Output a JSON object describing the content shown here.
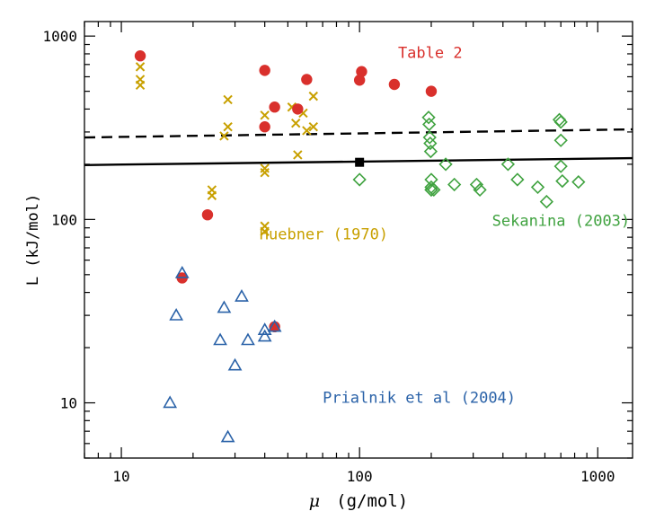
{
  "chart_data": {
    "type": "scatter",
    "xscale": "log",
    "yscale": "log",
    "xlim": [
      7,
      1400
    ],
    "ylim": [
      5,
      1200
    ],
    "xlabel_symbol": "μ",
    "xlabel_units": "(g/mol)",
    "ylabel": "L  (kJ/mol)",
    "xticks": [
      {
        "value": 10,
        "label": "10"
      },
      {
        "value": 100,
        "label": "100"
      },
      {
        "value": 1000,
        "label": "1000"
      }
    ],
    "yticks": [
      {
        "value": 10,
        "label": "10"
      },
      {
        "value": 100,
        "label": "100"
      },
      {
        "value": 1000,
        "label": "1000"
      }
    ],
    "grid": false,
    "series": [
      {
        "name": "Huebner (1970)",
        "marker": "x",
        "color": "#c8a000",
        "x": [
          12,
          12,
          12,
          24,
          24,
          27,
          28,
          28,
          40,
          40,
          40,
          40,
          40,
          52,
          54,
          55,
          58,
          60,
          64,
          64
        ],
        "y": [
          680,
          580,
          540,
          145,
          135,
          285,
          450,
          320,
          370,
          190,
          180,
          92,
          86,
          410,
          335,
          225,
          380,
          305,
          470,
          320
        ]
      },
      {
        "name": "Table 2",
        "marker": "filled-circle",
        "color": "#d9302c",
        "x": [
          12,
          18,
          23,
          40,
          40,
          44,
          44,
          55,
          60,
          100,
          102,
          140,
          200
        ],
        "y": [
          780,
          48,
          106,
          650,
          320,
          410,
          26,
          400,
          580,
          575,
          640,
          545,
          500
        ]
      },
      {
        "name": "Sekanina (2003)",
        "marker": "diamond",
        "color": "#3fa23f",
        "x": [
          100,
          195,
          196,
          197,
          198,
          199,
          200,
          200,
          200,
          200,
          205,
          230,
          250,
          310,
          320,
          420,
          460,
          560,
          610,
          690,
          700,
          700,
          700,
          710,
          830
        ],
        "y": [
          165,
          360,
          330,
          280,
          260,
          235,
          165,
          150,
          145,
          145,
          145,
          200,
          155,
          155,
          145,
          200,
          165,
          150,
          125,
          350,
          340,
          270,
          195,
          162,
          160
        ]
      },
      {
        "name": "Prialnik et al (2004)",
        "marker": "triangle",
        "color": "#2a62a8",
        "x": [
          16,
          17,
          18,
          26,
          27,
          28,
          30,
          32,
          34,
          40,
          40,
          44
        ],
        "y": [
          10,
          30,
          51,
          22,
          33,
          6.5,
          16,
          38,
          22,
          25,
          23,
          26
        ]
      },
      {
        "marker": "filled-square",
        "color": "#000000",
        "x": [
          100
        ],
        "y": [
          205
        ]
      }
    ],
    "lines": [
      {
        "style": "solid",
        "color": "#000000",
        "x": [
          7,
          1400
        ],
        "y": [
          198,
          216
        ]
      },
      {
        "style": "dashed",
        "color": "#000000",
        "x": [
          7,
          1400
        ],
        "y": [
          280,
          310
        ]
      }
    ],
    "annotations": [
      {
        "text": "Table 2",
        "color": "#d9302c",
        "x": 145,
        "y": 760
      },
      {
        "text": "Sekanina (2003)",
        "color": "#3fa23f",
        "x": 360,
        "y": 92
      },
      {
        "text": "Huebner (1970)",
        "color": "#c8a000",
        "x": 38,
        "y": 78
      },
      {
        "text": "Prialnik et al (2004)",
        "color": "#2a62a8",
        "x": 70,
        "y": 10
      }
    ]
  }
}
